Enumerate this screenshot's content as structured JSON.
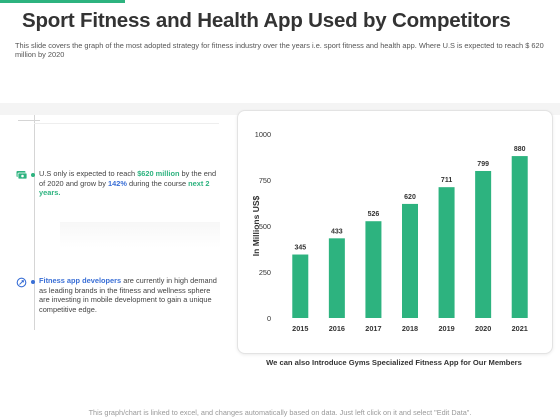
{
  "header": {
    "title": "Sport Fitness and Health App Used by Competitors",
    "subtitle": "This slide covers the graph of the most adopted strategy for fitness industry over the years i.e. sport fitness and health app. Where  U.S is expected to reach $ 620 million by 2020"
  },
  "left_panel": {
    "item1": {
      "icon": "money-icon",
      "text_before": "U.S only is expected to reach ",
      "highlight1": "$620 million",
      "text_mid": " by the end of 2020 and grow by ",
      "highlight2": "142%",
      "text_after": "  during the course ",
      "highlight3": "next 2 years."
    },
    "item2": {
      "icon": "refresh-icon",
      "highlight": "Fitness app developers",
      "text": " are currently in high demand as leading brands in the fitness and wellness sphere are investing in mobile development to gain a unique competitive edge."
    }
  },
  "colors": {
    "accent": "#2db37f",
    "blue": "#3a6fd6",
    "bar": "#2db37f"
  },
  "chart_data": {
    "type": "bar",
    "categories": [
      "2015",
      "2016",
      "2017",
      "2018",
      "2019",
      "2020",
      "2021"
    ],
    "values": [
      345,
      433,
      526,
      620,
      711,
      799,
      880
    ],
    "title": "",
    "xlabel": "",
    "ylabel": "In Millions US$",
    "ylim": [
      0,
      1000
    ],
    "yticks": [
      0,
      250,
      500,
      750,
      1000
    ],
    "grid": false,
    "data_labels": true
  },
  "caption": "We can also Introduce Gyms Specialized Fitness App for Our Members",
  "footer": "This graph/chart is linked to excel, and changes automatically based on data. Just left click on it and select \"Edit Data\"."
}
